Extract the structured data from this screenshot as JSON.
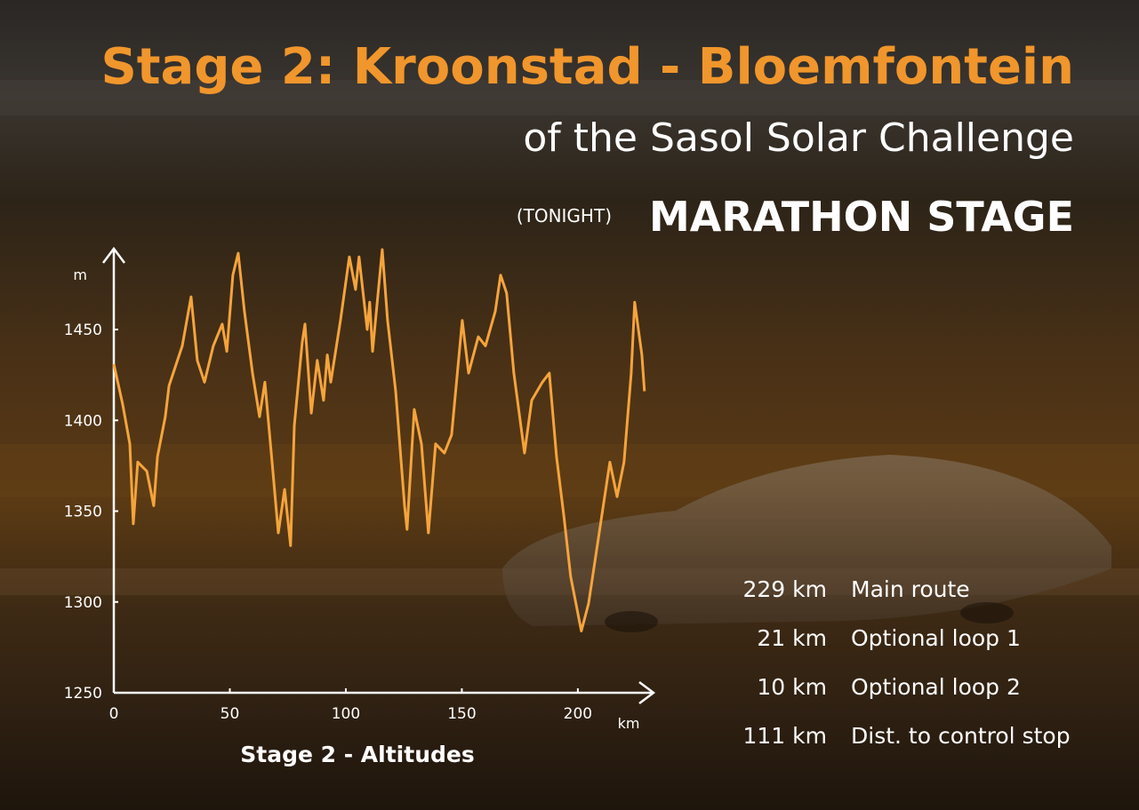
{
  "header": {
    "title": "Stage 2: Kroonstad - Bloemfontein",
    "subtitle": "of the Sasol Solar Challenge",
    "prefix": "(TONIGHT)",
    "highlight": "MARATHON STAGE"
  },
  "stats": [
    {
      "distance": "229 km",
      "label": "Main route"
    },
    {
      "distance": "21 km",
      "label": "Optional loop 1"
    },
    {
      "distance": "10 km",
      "label": "Optional loop 2"
    },
    {
      "distance": "111 km",
      "label": "Dist. to control stop"
    }
  ],
  "chart_data": {
    "type": "line",
    "title": "Stage 2 - Altitudes",
    "x_label": "km",
    "y_label": "m",
    "xlim": [
      0,
      233
    ],
    "ylim": [
      1250,
      1495
    ],
    "xticks": [
      0,
      50,
      100,
      150,
      200
    ],
    "yticks": [
      1250,
      1300,
      1350,
      1400,
      1450
    ],
    "series": [
      {
        "color": "#f5a43c",
        "x": [
          0,
          3.8,
          6.9,
          8.4,
          10.3,
          14.2,
          17.2,
          18.8,
          22.2,
          23.8,
          29.5,
          33.3,
          36.0,
          39.1,
          42.9,
          46.7,
          48.7,
          51.3,
          53.6,
          56.3,
          59.8,
          62.8,
          65.1,
          68.2,
          70.9,
          73.6,
          76.2,
          77.8,
          81.2,
          82.4,
          85.1,
          87.7,
          90.4,
          92.0,
          93.5,
          97.7,
          101.5,
          104.2,
          105.7,
          109.2,
          110.3,
          111.5,
          115.7,
          118.0,
          121.5,
          125.3,
          126.4,
          129.5,
          132.6,
          135.6,
          138.7,
          142.5,
          145.6,
          150.2,
          152.9,
          157.1,
          160.2,
          164.4,
          166.7,
          169.3,
          172.4,
          177.0,
          180.1,
          184.7,
          187.7,
          190.8,
          193.9,
          196.9,
          201.5,
          204.6,
          209.2,
          213.8,
          216.9,
          219.9,
          223.0,
          224.5,
          227.6,
          228.7
        ],
        "values": [
          1431,
          1409,
          1387,
          1343,
          1377,
          1372,
          1353,
          1380,
          1402,
          1419,
          1441,
          1468,
          1433,
          1421,
          1441,
          1453,
          1438,
          1480,
          1492,
          1460,
          1426,
          1402,
          1421,
          1377,
          1338,
          1362,
          1331,
          1397,
          1443,
          1453,
          1404,
          1433,
          1411,
          1436,
          1421,
          1455,
          1490,
          1472,
          1490,
          1450,
          1465,
          1438,
          1494,
          1455,
          1416,
          1353,
          1340,
          1406,
          1387,
          1338,
          1387,
          1382,
          1392,
          1455,
          1426,
          1446,
          1441,
          1460,
          1480,
          1470,
          1426,
          1382,
          1411,
          1421,
          1426,
          1380,
          1348,
          1314,
          1284,
          1299,
          1338,
          1377,
          1358,
          1377,
          1426,
          1465,
          1436,
          1416
        ]
      }
    ]
  }
}
